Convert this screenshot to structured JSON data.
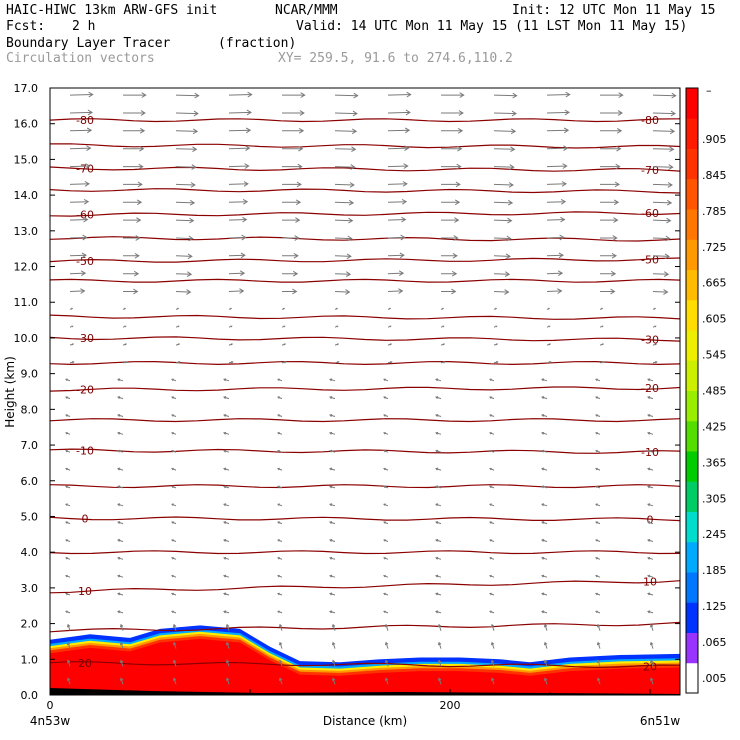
{
  "header": {
    "model": "HAIC-HIWC 13km ARW-GFS init",
    "org": "NCAR/MMM",
    "init": "Init: 12 UTC Mon 11 May 15",
    "fcst_label": "Fcst:",
    "fcst_value": "2 h",
    "valid": "Valid: 14 UTC Mon 11 May 15 (11 LST Mon 11 May 15)",
    "field": "Boundary Layer Tracer",
    "field_units": "(fraction)",
    "overlay": "Circulation vectors",
    "xy": "XY= 259.5, 91.6 to 274.6,110.2"
  },
  "colors": {
    "contour": "#8b0000",
    "vector": "#7a7a7a",
    "colorbar": [
      "#ffffff",
      "#9933ff",
      "#0033ff",
      "#0077ff",
      "#00aaff",
      "#00ddcc",
      "#00cc66",
      "#00cc00",
      "#55dd00",
      "#99ee00",
      "#ccee00",
      "#eeee00",
      "#ffdd00",
      "#ffbb00",
      "#ff9900",
      "#ff7700",
      "#ff5500",
      "#ff3300",
      "#ff1a00",
      "#ff0000"
    ]
  },
  "chart_data": {
    "type": "cross-section",
    "xlabel": "Distance (km)",
    "ylabel": "Height (km)",
    "xlim": [
      0,
      315
    ],
    "ylim": [
      0,
      17
    ],
    "x_ticks": [
      {
        "value": 0,
        "label": "0"
      },
      {
        "value": 200,
        "label": "200"
      }
    ],
    "y_ticks": [
      "0.0",
      "1.0",
      "2.0",
      "3.0",
      "4.0",
      "5.0",
      "6.0",
      "7.0",
      "8.0",
      "9.0",
      "10.0",
      "11.0",
      "12.0",
      "13.0",
      "14.0",
      "15.0",
      "16.0",
      "17.0"
    ],
    "left_endpoint": "4n53w",
    "right_endpoint": "6n51w",
    "colorbar_labels": [
      ".005",
      ".065",
      ".125",
      ".185",
      ".245",
      ".305",
      ".365",
      ".425",
      ".485",
      ".545",
      ".605",
      ".665",
      ".725",
      ".785",
      ".845",
      ".905"
    ],
    "colorbar_top_label": "–",
    "tracer_top_km": [
      [
        0,
        1.55
      ],
      [
        20,
        1.7
      ],
      [
        40,
        1.6
      ],
      [
        55,
        1.85
      ],
      [
        75,
        1.95
      ],
      [
        95,
        1.85
      ],
      [
        110,
        1.35
      ],
      [
        125,
        0.95
      ],
      [
        145,
        0.92
      ],
      [
        165,
        1.0
      ],
      [
        185,
        1.05
      ],
      [
        205,
        1.05
      ],
      [
        225,
        1.0
      ],
      [
        240,
        0.92
      ],
      [
        260,
        1.05
      ],
      [
        285,
        1.12
      ],
      [
        315,
        1.15
      ]
    ],
    "contours": [
      {
        "label": "-80",
        "heights": [
          16.1,
          16.1
        ]
      },
      {
        "label": "",
        "heights": [
          15.4,
          15.35
        ]
      },
      {
        "label": "-70",
        "heights": [
          14.75,
          14.7
        ]
      },
      {
        "label": "",
        "heights": [
          14.15,
          14.1
        ]
      },
      {
        "label": "-60",
        "heights": [
          13.45,
          13.5
        ]
      },
      {
        "label": "",
        "heights": [
          12.8,
          12.75
        ]
      },
      {
        "label": "-50",
        "heights": [
          12.15,
          12.2
        ]
      },
      {
        "label": "",
        "heights": [
          11.6,
          11.6
        ]
      },
      {
        "label": "",
        "heights": [
          10.6,
          10.55
        ]
      },
      {
        "label": "-30",
        "heights": [
          10.0,
          9.95
        ]
      },
      {
        "label": "",
        "heights": [
          9.3,
          9.3
        ]
      },
      {
        "label": "-20",
        "heights": [
          8.55,
          8.6
        ]
      },
      {
        "label": "",
        "heights": [
          7.7,
          7.7
        ]
      },
      {
        "label": "-10",
        "heights": [
          6.85,
          6.8
        ]
      },
      {
        "label": "",
        "heights": [
          5.85,
          5.85
        ]
      },
      {
        "label": "0",
        "heights": [
          4.95,
          4.92
        ]
      },
      {
        "label": "",
        "heights": [
          4.0,
          4.0
        ]
      },
      {
        "label": "10",
        "heights": [
          2.9,
          3.2
        ]
      },
      {
        "label": "",
        "heights": [
          1.8,
          2.0
        ]
      },
      {
        "label": "20",
        "heights": [
          0.9,
          0.8
        ]
      }
    ]
  }
}
